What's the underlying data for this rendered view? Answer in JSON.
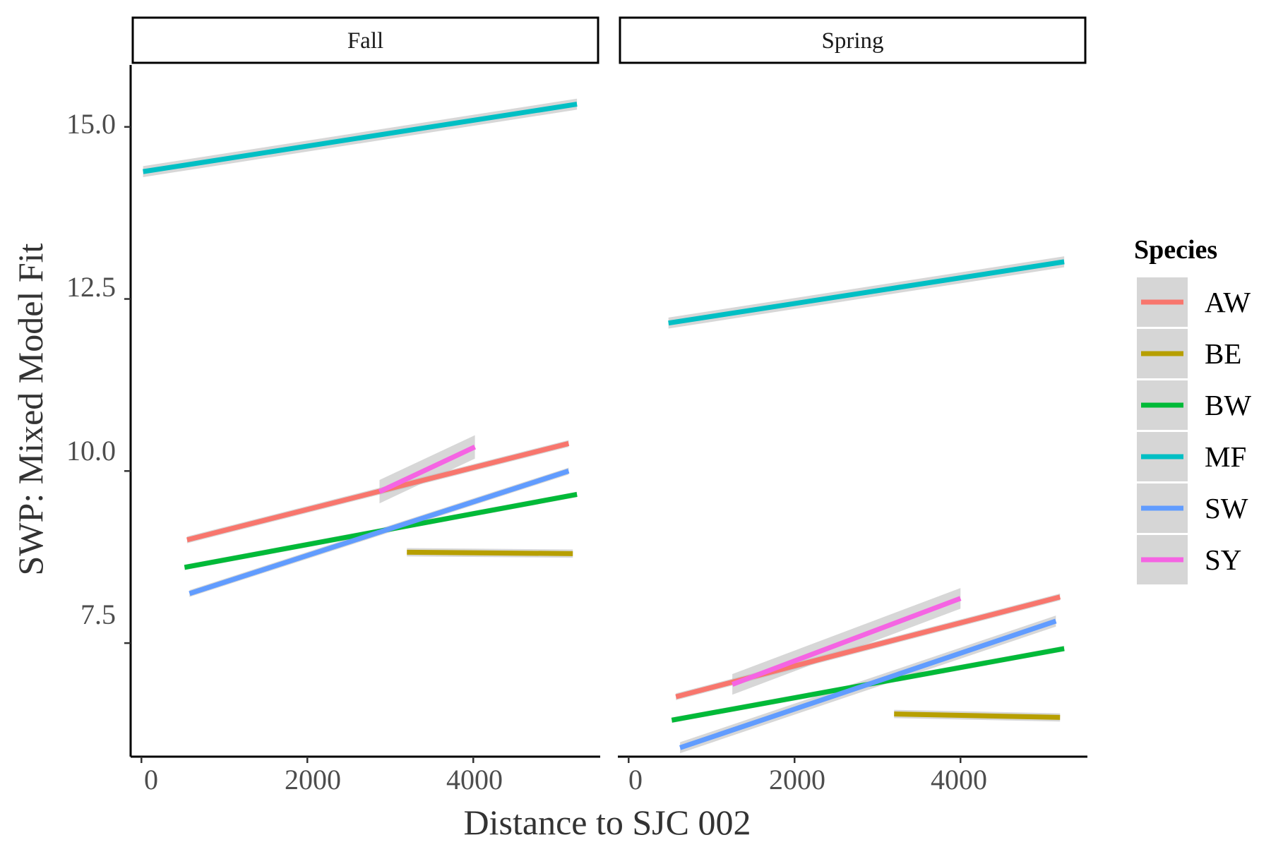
{
  "chart_data": {
    "type": "line",
    "xlabel": "Distance to SJC 002",
    "ylabel": "SWP: Mixed Model Fit",
    "xlim": [
      -130,
      5530
    ],
    "ylim": [
      5.85,
      15.9
    ],
    "x_ticks": [
      0,
      2000,
      4000
    ],
    "x_tick_labels": [
      "0",
      "2000",
      "4000"
    ],
    "y_ticks": [
      7.5,
      10.0,
      12.5,
      15.0
    ],
    "y_tick_labels": [
      "7.5",
      "10.0",
      "12.5",
      "15.0"
    ],
    "grid": false,
    "legend": {
      "title": "Species",
      "placement": "right"
    },
    "colors": {
      "AW": "#F8766D",
      "BE": "#B79F00",
      "BW": "#00BA38",
      "MF": "#00BFC4",
      "SW": "#619CFF",
      "SY": "#F564E3",
      "ribbon": "#bdbdbd"
    },
    "panels": [
      {
        "label": "Fall",
        "series": [
          {
            "name": "AW",
            "x": [
              550,
              5150
            ],
            "y": [
              9.0,
              10.4
            ],
            "se": 0.05
          },
          {
            "name": "BE",
            "x": [
              3200,
              5200
            ],
            "y": [
              8.82,
              8.8
            ],
            "se": 0.06
          },
          {
            "name": "BW",
            "x": [
              520,
              5250
            ],
            "y": [
              8.6,
              9.66
            ],
            "se": 0.04
          },
          {
            "name": "MF",
            "x": [
              20,
              5250
            ],
            "y": [
              14.35,
              15.33
            ],
            "se": 0.08
          },
          {
            "name": "SW",
            "x": [
              580,
              5150
            ],
            "y": [
              8.22,
              10.0
            ],
            "se": 0.05
          },
          {
            "name": "SY",
            "x": [
              2870,
              4020
            ],
            "y": [
              9.7,
              10.35
            ],
            "se": 0.17
          }
        ]
      },
      {
        "label": "Spring",
        "series": [
          {
            "name": "AW",
            "x": [
              570,
              5200
            ],
            "y": [
              6.72,
              8.17
            ],
            "se": 0.05
          },
          {
            "name": "BE",
            "x": [
              3200,
              5200
            ],
            "y": [
              6.47,
              6.42
            ],
            "se": 0.06
          },
          {
            "name": "BW",
            "x": [
              520,
              5250
            ],
            "y": [
              6.38,
              7.42
            ],
            "se": 0.04
          },
          {
            "name": "MF",
            "x": [
              480,
              5250
            ],
            "y": [
              12.15,
              13.04
            ],
            "se": 0.08
          },
          {
            "name": "SW",
            "x": [
              620,
              5150
            ],
            "y": [
              5.98,
              7.82
            ],
            "se": 0.08
          },
          {
            "name": "SY",
            "x": [
              1250,
              4000
            ],
            "y": [
              6.9,
              8.15
            ],
            "se": 0.15
          }
        ]
      }
    ]
  }
}
